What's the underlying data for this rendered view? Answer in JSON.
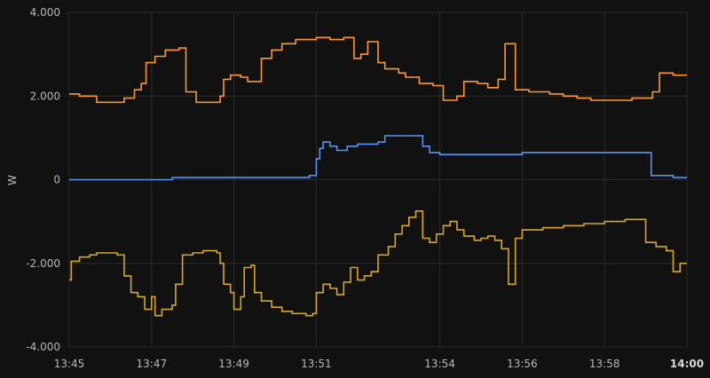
{
  "chart_data": {
    "type": "line",
    "ylabel": "W",
    "ylim": [
      -4000,
      4000
    ],
    "y_ticks": [
      {
        "value": 4000,
        "label": "4.000"
      },
      {
        "value": 2000,
        "label": "2.000"
      },
      {
        "value": 0,
        "label": "0"
      },
      {
        "value": -2000,
        "label": "-2.000"
      },
      {
        "value": -4000,
        "label": "-4.000"
      }
    ],
    "xlim": [
      "13:45",
      "14:00"
    ],
    "x_ticks": [
      {
        "time": "13:45",
        "label": "13:45",
        "bold": false
      },
      {
        "time": "13:47",
        "label": "13:47",
        "bold": false
      },
      {
        "time": "13:49",
        "label": "13:49",
        "bold": false
      },
      {
        "time": "13:51",
        "label": "13:51",
        "bold": false
      },
      {
        "time": "13:54",
        "label": "13:54",
        "bold": false
      },
      {
        "time": "13:56",
        "label": "13:56",
        "bold": false
      },
      {
        "time": "13:58",
        "label": "13:58",
        "bold": false
      },
      {
        "time": "14:00",
        "label": "14:00",
        "bold": true
      }
    ],
    "grid": true,
    "step": true,
    "series": [
      {
        "color": "#ff9830",
        "points": [
          [
            "13:45:00",
            2050
          ],
          [
            "13:45:15",
            2000
          ],
          [
            "13:45:40",
            1850
          ],
          [
            "13:46:20",
            1950
          ],
          [
            "13:46:35",
            2150
          ],
          [
            "13:46:45",
            2300
          ],
          [
            "13:46:52",
            2800
          ],
          [
            "13:47:05",
            2950
          ],
          [
            "13:47:20",
            3100
          ],
          [
            "13:47:40",
            3150
          ],
          [
            "13:47:50",
            2100
          ],
          [
            "13:48:05",
            1850
          ],
          [
            "13:48:40",
            2000
          ],
          [
            "13:48:45",
            2400
          ],
          [
            "13:48:55",
            2500
          ],
          [
            "13:49:10",
            2450
          ],
          [
            "13:49:20",
            2350
          ],
          [
            "13:49:40",
            2900
          ],
          [
            "13:49:55",
            3100
          ],
          [
            "13:50:10",
            3250
          ],
          [
            "13:50:30",
            3350
          ],
          [
            "13:51:00",
            3400
          ],
          [
            "13:51:20",
            3350
          ],
          [
            "13:51:40",
            3400
          ],
          [
            "13:51:55",
            2900
          ],
          [
            "13:52:05",
            3000
          ],
          [
            "13:52:15",
            3300
          ],
          [
            "13:52:30",
            2800
          ],
          [
            "13:52:40",
            2650
          ],
          [
            "13:53:00",
            2550
          ],
          [
            "13:53:10",
            2450
          ],
          [
            "13:53:30",
            2300
          ],
          [
            "13:53:50",
            2250
          ],
          [
            "13:54:05",
            1900
          ],
          [
            "13:54:25",
            2000
          ],
          [
            "13:54:35",
            2350
          ],
          [
            "13:54:55",
            2300
          ],
          [
            "13:55:10",
            2200
          ],
          [
            "13:55:25",
            2400
          ],
          [
            "13:55:35",
            3250
          ],
          [
            "13:55:50",
            2150
          ],
          [
            "13:56:10",
            2100
          ],
          [
            "13:56:40",
            2050
          ],
          [
            "13:57:00",
            2000
          ],
          [
            "13:57:20",
            1950
          ],
          [
            "13:57:40",
            1900
          ],
          [
            "13:58:20",
            1900
          ],
          [
            "13:58:40",
            1950
          ],
          [
            "13:59:10",
            2100
          ],
          [
            "13:59:20",
            2550
          ],
          [
            "13:59:40",
            2500
          ],
          [
            "14:00:00",
            2500
          ]
        ]
      },
      {
        "color": "#5794f2",
        "points": [
          [
            "13:45:00",
            0
          ],
          [
            "13:47:30",
            50
          ],
          [
            "13:50:50",
            100
          ],
          [
            "13:51:00",
            500
          ],
          [
            "13:51:05",
            750
          ],
          [
            "13:51:10",
            900
          ],
          [
            "13:51:20",
            800
          ],
          [
            "13:51:30",
            700
          ],
          [
            "13:51:45",
            800
          ],
          [
            "13:52:00",
            850
          ],
          [
            "13:52:30",
            900
          ],
          [
            "13:52:40",
            1050
          ],
          [
            "13:53:10",
            1050
          ],
          [
            "13:53:35",
            800
          ],
          [
            "13:53:45",
            650
          ],
          [
            "13:54:00",
            600
          ],
          [
            "13:56:00",
            650
          ],
          [
            "13:59:00",
            650
          ],
          [
            "13:59:08",
            100
          ],
          [
            "13:59:40",
            50
          ],
          [
            "14:00:00",
            50
          ]
        ]
      },
      {
        "color": "#d4a72c",
        "points": [
          [
            "13:45:00",
            -2400
          ],
          [
            "13:45:03",
            -1950
          ],
          [
            "13:45:15",
            -1850
          ],
          [
            "13:45:30",
            -1800
          ],
          [
            "13:45:40",
            -1750
          ],
          [
            "13:46:10",
            -1800
          ],
          [
            "13:46:20",
            -2300
          ],
          [
            "13:46:30",
            -2700
          ],
          [
            "13:46:40",
            -2800
          ],
          [
            "13:46:50",
            -3100
          ],
          [
            "13:47:00",
            -2800
          ],
          [
            "13:47:05",
            -3250
          ],
          [
            "13:47:15",
            -3100
          ],
          [
            "13:47:30",
            -3000
          ],
          [
            "13:47:35",
            -2500
          ],
          [
            "13:47:45",
            -1800
          ],
          [
            "13:48:00",
            -1750
          ],
          [
            "13:48:15",
            -1700
          ],
          [
            "13:48:35",
            -1750
          ],
          [
            "13:48:40",
            -2000
          ],
          [
            "13:48:45",
            -2500
          ],
          [
            "13:48:55",
            -2700
          ],
          [
            "13:49:00",
            -3100
          ],
          [
            "13:49:10",
            -2800
          ],
          [
            "13:49:15",
            -2100
          ],
          [
            "13:49:25",
            -2050
          ],
          [
            "13:49:30",
            -2700
          ],
          [
            "13:49:40",
            -2900
          ],
          [
            "13:49:55",
            -3050
          ],
          [
            "13:50:10",
            -3150
          ],
          [
            "13:50:25",
            -3200
          ],
          [
            "13:50:45",
            -3250
          ],
          [
            "13:50:55",
            -3200
          ],
          [
            "13:51:00",
            -2700
          ],
          [
            "13:51:10",
            -2500
          ],
          [
            "13:51:20",
            -2600
          ],
          [
            "13:51:30",
            -2750
          ],
          [
            "13:51:40",
            -2450
          ],
          [
            "13:51:50",
            -2100
          ],
          [
            "13:52:00",
            -2400
          ],
          [
            "13:52:10",
            -2300
          ],
          [
            "13:52:20",
            -2200
          ],
          [
            "13:52:30",
            -1800
          ],
          [
            "13:52:45",
            -1600
          ],
          [
            "13:52:55",
            -1300
          ],
          [
            "13:53:05",
            -1100
          ],
          [
            "13:53:15",
            -900
          ],
          [
            "13:53:25",
            -750
          ],
          [
            "13:53:35",
            -1400
          ],
          [
            "13:53:45",
            -1500
          ],
          [
            "13:53:55",
            -1300
          ],
          [
            "13:54:05",
            -1100
          ],
          [
            "13:54:15",
            -1000
          ],
          [
            "13:54:25",
            -1200
          ],
          [
            "13:54:35",
            -1350
          ],
          [
            "13:54:50",
            -1450
          ],
          [
            "13:55:00",
            -1400
          ],
          [
            "13:55:10",
            -1350
          ],
          [
            "13:55:20",
            -1450
          ],
          [
            "13:55:30",
            -1650
          ],
          [
            "13:55:40",
            -2500
          ],
          [
            "13:55:50",
            -1400
          ],
          [
            "13:56:00",
            -1200
          ],
          [
            "13:56:30",
            -1150
          ],
          [
            "13:57:00",
            -1100
          ],
          [
            "13:57:30",
            -1050
          ],
          [
            "13:58:00",
            -1000
          ],
          [
            "13:58:30",
            -950
          ],
          [
            "13:59:00",
            -1500
          ],
          [
            "13:59:15",
            -1600
          ],
          [
            "13:59:30",
            -1700
          ],
          [
            "13:59:40",
            -2200
          ],
          [
            "13:59:50",
            -2000
          ],
          [
            "14:00:00",
            -2000
          ]
        ]
      }
    ]
  }
}
